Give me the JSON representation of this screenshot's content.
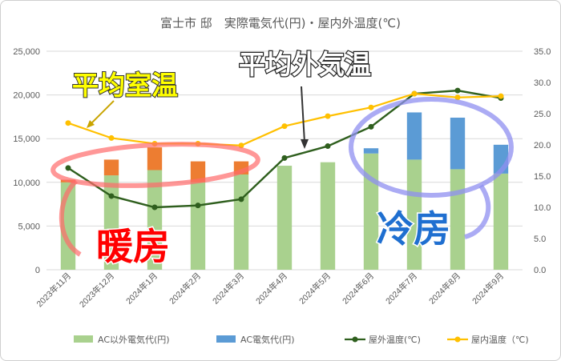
{
  "chart_data": {
    "type": "bar",
    "title": "富士市  邸　実際電気代(円)・屋内外温度(℃)",
    "categories": [
      "2023年11月",
      "2023年12月",
      "2024年1月",
      "2024年2月",
      "2024年3月",
      "2024年4月",
      "2024年5月",
      "2024年6月",
      "2024年7月",
      "2024年8月",
      "2024年9月"
    ],
    "series": [
      {
        "name": "AC以外電気代(円)",
        "kind": "bar",
        "axis": "left",
        "color": "#a9d18e",
        "values": [
          10000,
          10800,
          11400,
          10000,
          10900,
          11900,
          12300,
          13300,
          12600,
          11500,
          11000
        ]
      },
      {
        "name": "AC電気代(円)",
        "kind": "bar",
        "axis": "left",
        "color": "#5b9bd5",
        "values": [
          300,
          1800,
          2600,
          2400,
          1500,
          0,
          0,
          600,
          5400,
          5900,
          3300
        ],
        "top_colors": [
          "#ed7d31",
          "#ed7d31",
          "#ed7d31",
          "#ed7d31",
          "#ed7d31",
          "#5b9bd5",
          "#5b9bd5",
          "#5b9bd5",
          "#5b9bd5",
          "#5b9bd5",
          "#5b9bd5"
        ]
      },
      {
        "name": "屋外温度(℃)",
        "kind": "line",
        "axis": "right",
        "color": "#2f5f1e",
        "values": [
          16.3,
          11.8,
          10.0,
          10.3,
          11.3,
          17.9,
          19.8,
          22.9,
          28.2,
          28.7,
          27.5
        ]
      },
      {
        "name": "屋内温度（℃)",
        "kind": "line",
        "axis": "right",
        "color": "#ffc000",
        "values": [
          23.5,
          21.1,
          20.2,
          20.2,
          19.9,
          23.0,
          24.6,
          26.0,
          28.2,
          27.6,
          27.8
        ]
      }
    ],
    "y_left": {
      "min": 0,
      "max": 25000,
      "ticks": [
        "0",
        "5,000",
        "10,000",
        "15,000",
        "20,000",
        "25,000"
      ]
    },
    "y_right": {
      "min": 0,
      "max": 35,
      "ticks": [
        "0.0",
        "5.0",
        "10.0",
        "15.0",
        "20.0",
        "25.0",
        "30.0",
        "35.0"
      ]
    },
    "grid": true,
    "legend_position": "bottom",
    "annotations": {
      "indoor": "平均室温",
      "outdoor": "平均外気温",
      "heating": "暖房",
      "cooling": "冷房"
    }
  }
}
